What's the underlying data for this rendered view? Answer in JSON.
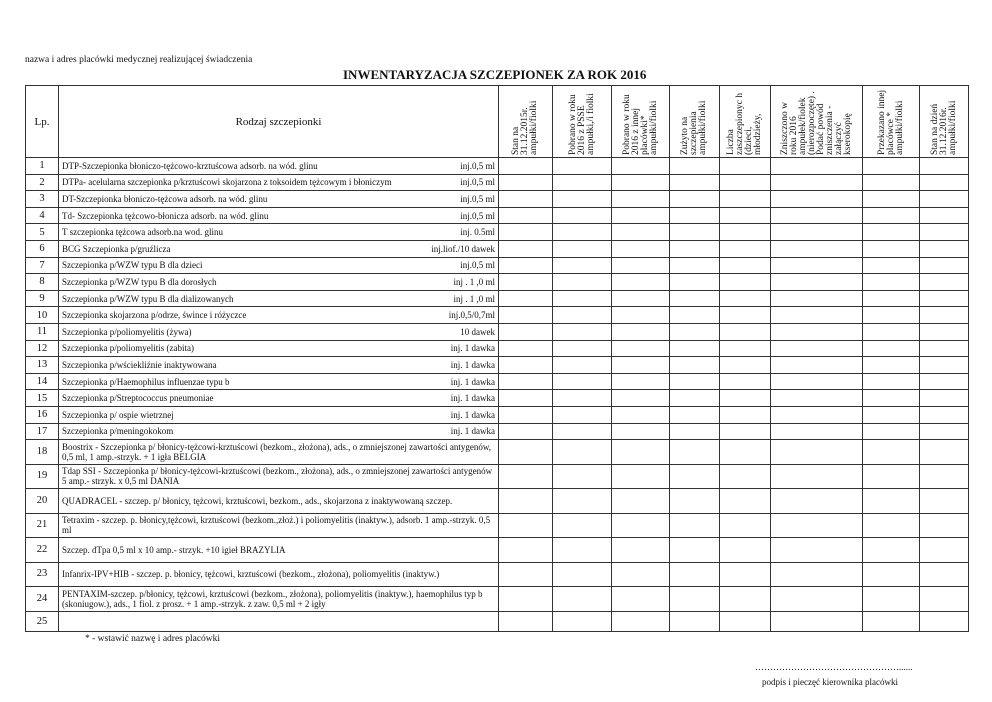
{
  "header": {
    "org_label": "nazwa i adres placówki medycznej realizującej świadczenia",
    "title": "INWENTARYZACJA SZCZEPIONEK ZA ROK  2016"
  },
  "columns": {
    "lp": "Lp.",
    "name": "Rodzaj szczepionki",
    "data": [
      "Stan na 31.12.2015r. ampułki/fiolki",
      "Pobrano w roku 2016 z PSSE ampułki,/i fiolki",
      "Pobrano w roku 2016 z innej placówki* ampułki/fiolki",
      "Zużyto na szczepienia ampułki/fiolki",
      "Liczba zaszczepionyc h (dzieci, młodzieży,",
      "Zniszczono w roku 2016 ampułek/fiolek (nierozpoczęte) . Podać powód zniszczenia - załączyć kserokopię",
      "Przekazano innej placówce * ampułki/fiolki",
      "Stan na dzień 31.12.2016r. ampułki/fiolki"
    ]
  },
  "rows": [
    {
      "lp": "1",
      "name": "DTP-Szczepionka błoniczo-tężcowo-krztuścowa adsorb. na wód. glinu",
      "form": "inj.0,5 ml"
    },
    {
      "lp": "2",
      "name": "DTPa- acelularna szczepionka p/krztuścowi skojarzona z toksoidem tężcowym i błoniczym",
      "form": "inj.0,5 ml"
    },
    {
      "lp": "3",
      "name": "DT-Szczepionka błoniczo-tężcowa adsorb. na wód. glinu",
      "form": "inj.0,5 ml"
    },
    {
      "lp": "4",
      "name": "Td- Szczepionka tężcowo-błonicza adsorb. na wód. glinu",
      "form": "inj.0,5 ml"
    },
    {
      "lp": "5",
      "name": "T szczepionka tężcowa adsorb.na wod. glinu",
      "form": "inj. 0.5ml"
    },
    {
      "lp": "6",
      "name": "BCG Szczepionka p/gruźlicza",
      "form": "inj.liof./10 dawek"
    },
    {
      "lp": "7",
      "name": "Szczepionka p/WZW typu B dla dzieci",
      "form": "inj.0,5 ml"
    },
    {
      "lp": "8",
      "name": "Szczepionka p/WZW typu B dla dorosłych",
      "form": "inj . 1 ,0 ml"
    },
    {
      "lp": "9",
      "name": "Szczepionka p/WZW typu B dla dializowanych",
      "form": "inj . 1 ,0 ml"
    },
    {
      "lp": "10",
      "name": "Szczepionka skojarzona  p/odrze, śwince i różyczce",
      "form": "inj.0,5/0,7ml"
    },
    {
      "lp": "11",
      "name": "Szczepionka p/poliomyelitis (żywa)",
      "form": "10 dawek"
    },
    {
      "lp": "12",
      "name": "Szczepionka p/poliomyelitis (zabita)",
      "form": "inj. 1 dawka"
    },
    {
      "lp": "13",
      "name": "Szczepionka p/wściekliźnie inaktywowana",
      "form": "inj. 1 dawka"
    },
    {
      "lp": "14",
      "name": "Szczepionka  p/Haemophilus  influenzae  typu b",
      "form": "inj. 1 dawka"
    },
    {
      "lp": "15",
      "name": "Szczepionka p/Streptococcus pneumoniae",
      "form": "inj. 1 dawka"
    },
    {
      "lp": "16",
      "name": "Szczepionka p/ ospie wietrznej",
      "form": "inj. 1 dawka"
    },
    {
      "lp": "17",
      "name": "Szczepionka p/meningokokom",
      "form": "inj. 1 dawka"
    },
    {
      "lp": "18",
      "name": "Boostrix -  Szczepionka p/ błonicy-tężcowi-krztuścowi (bezkom., złożona), ads., o zmniejszonej zawartości antygenów, 0,5 ml, 1 amp.-strzyk. + 1 igła BELGIA"
    },
    {
      "lp": "19",
      "name": " Tdap SSI - Szczepionka  p/ błonicy-tężcowi-krztuścowi (bezkom., złożona), ads., o zmniejszonej zawartości antygenów 5 amp.- strzyk. x 0,5 ml DANIA"
    },
    {
      "lp": "20",
      "name": "QUADRACEL - szczep. p/ błonicy, tężcowi, krztuścowi, bezkom., ads., skojarzona z inaktywowaną szczep."
    },
    {
      "lp": "21",
      "name": "Tetraxim - szczep. p. błonicy,tężcowi, krztuścowi (bezkom.,złoż.) i poliomyelitis (inaktyw.), adsorb. 1 amp.-strzyk. 0,5 ml"
    },
    {
      "lp": "22",
      "name": "Szczep. dTpa 0,5 ml x 10 amp.- strzyk. +10 igieł BRAZYLIA"
    },
    {
      "lp": "23",
      "name": "Infanrix-IPV+HIB - szczep. p. błonicy, tężcowi, krztuścowi (bezkom., złożona), poliomyelitis (inaktyw.)"
    },
    {
      "lp": "24",
      "name": "PENTAXIM-szczep. p/błonicy, tężcowi, krztuścowi (bezkom., złożona), poliomyelitis (inaktyw.), haemophilus typ b (skoniugow.), ads., 1 fiol. z prosz. + 1 amp.-strzyk. z zaw. 0,5 ml + 2 igły"
    },
    {
      "lp": "25",
      "name": ""
    }
  ],
  "footer": {
    "note": "* - wstawić  nazwę i adres placówki",
    "dots": "…………………………………………......",
    "signature_label": "podpis i pieczęć kierownika placówki"
  }
}
